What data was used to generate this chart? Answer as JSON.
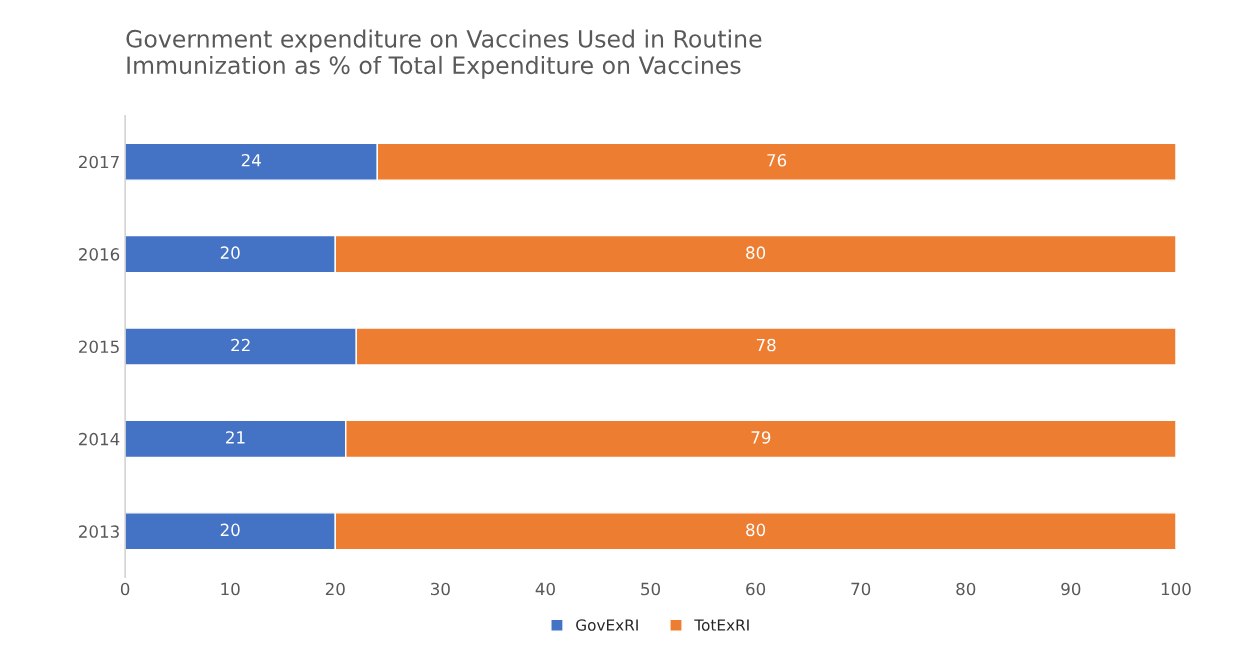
{
  "chart_data": {
    "type": "bar",
    "orientation": "horizontal",
    "stacked": true,
    "title": "Government expenditure on Vaccines Used in Routine\nImmunization as % of Total Expenditure on Vaccines",
    "categories": [
      "2017",
      "2016",
      "2015",
      "2014",
      "2013"
    ],
    "series": [
      {
        "name": "GovExRI",
        "color": "#4472c4",
        "values": [
          24,
          20,
          22,
          21,
          20
        ]
      },
      {
        "name": "TotExRI",
        "color": "#ed7d31",
        "values": [
          76,
          80,
          78,
          79,
          80
        ]
      }
    ],
    "xlim": [
      0,
      100
    ],
    "xticks": [
      0,
      10,
      20,
      30,
      40,
      50,
      60,
      70,
      80,
      90,
      100
    ],
    "data_labels": true,
    "legend": "bottom",
    "grid": false
  }
}
